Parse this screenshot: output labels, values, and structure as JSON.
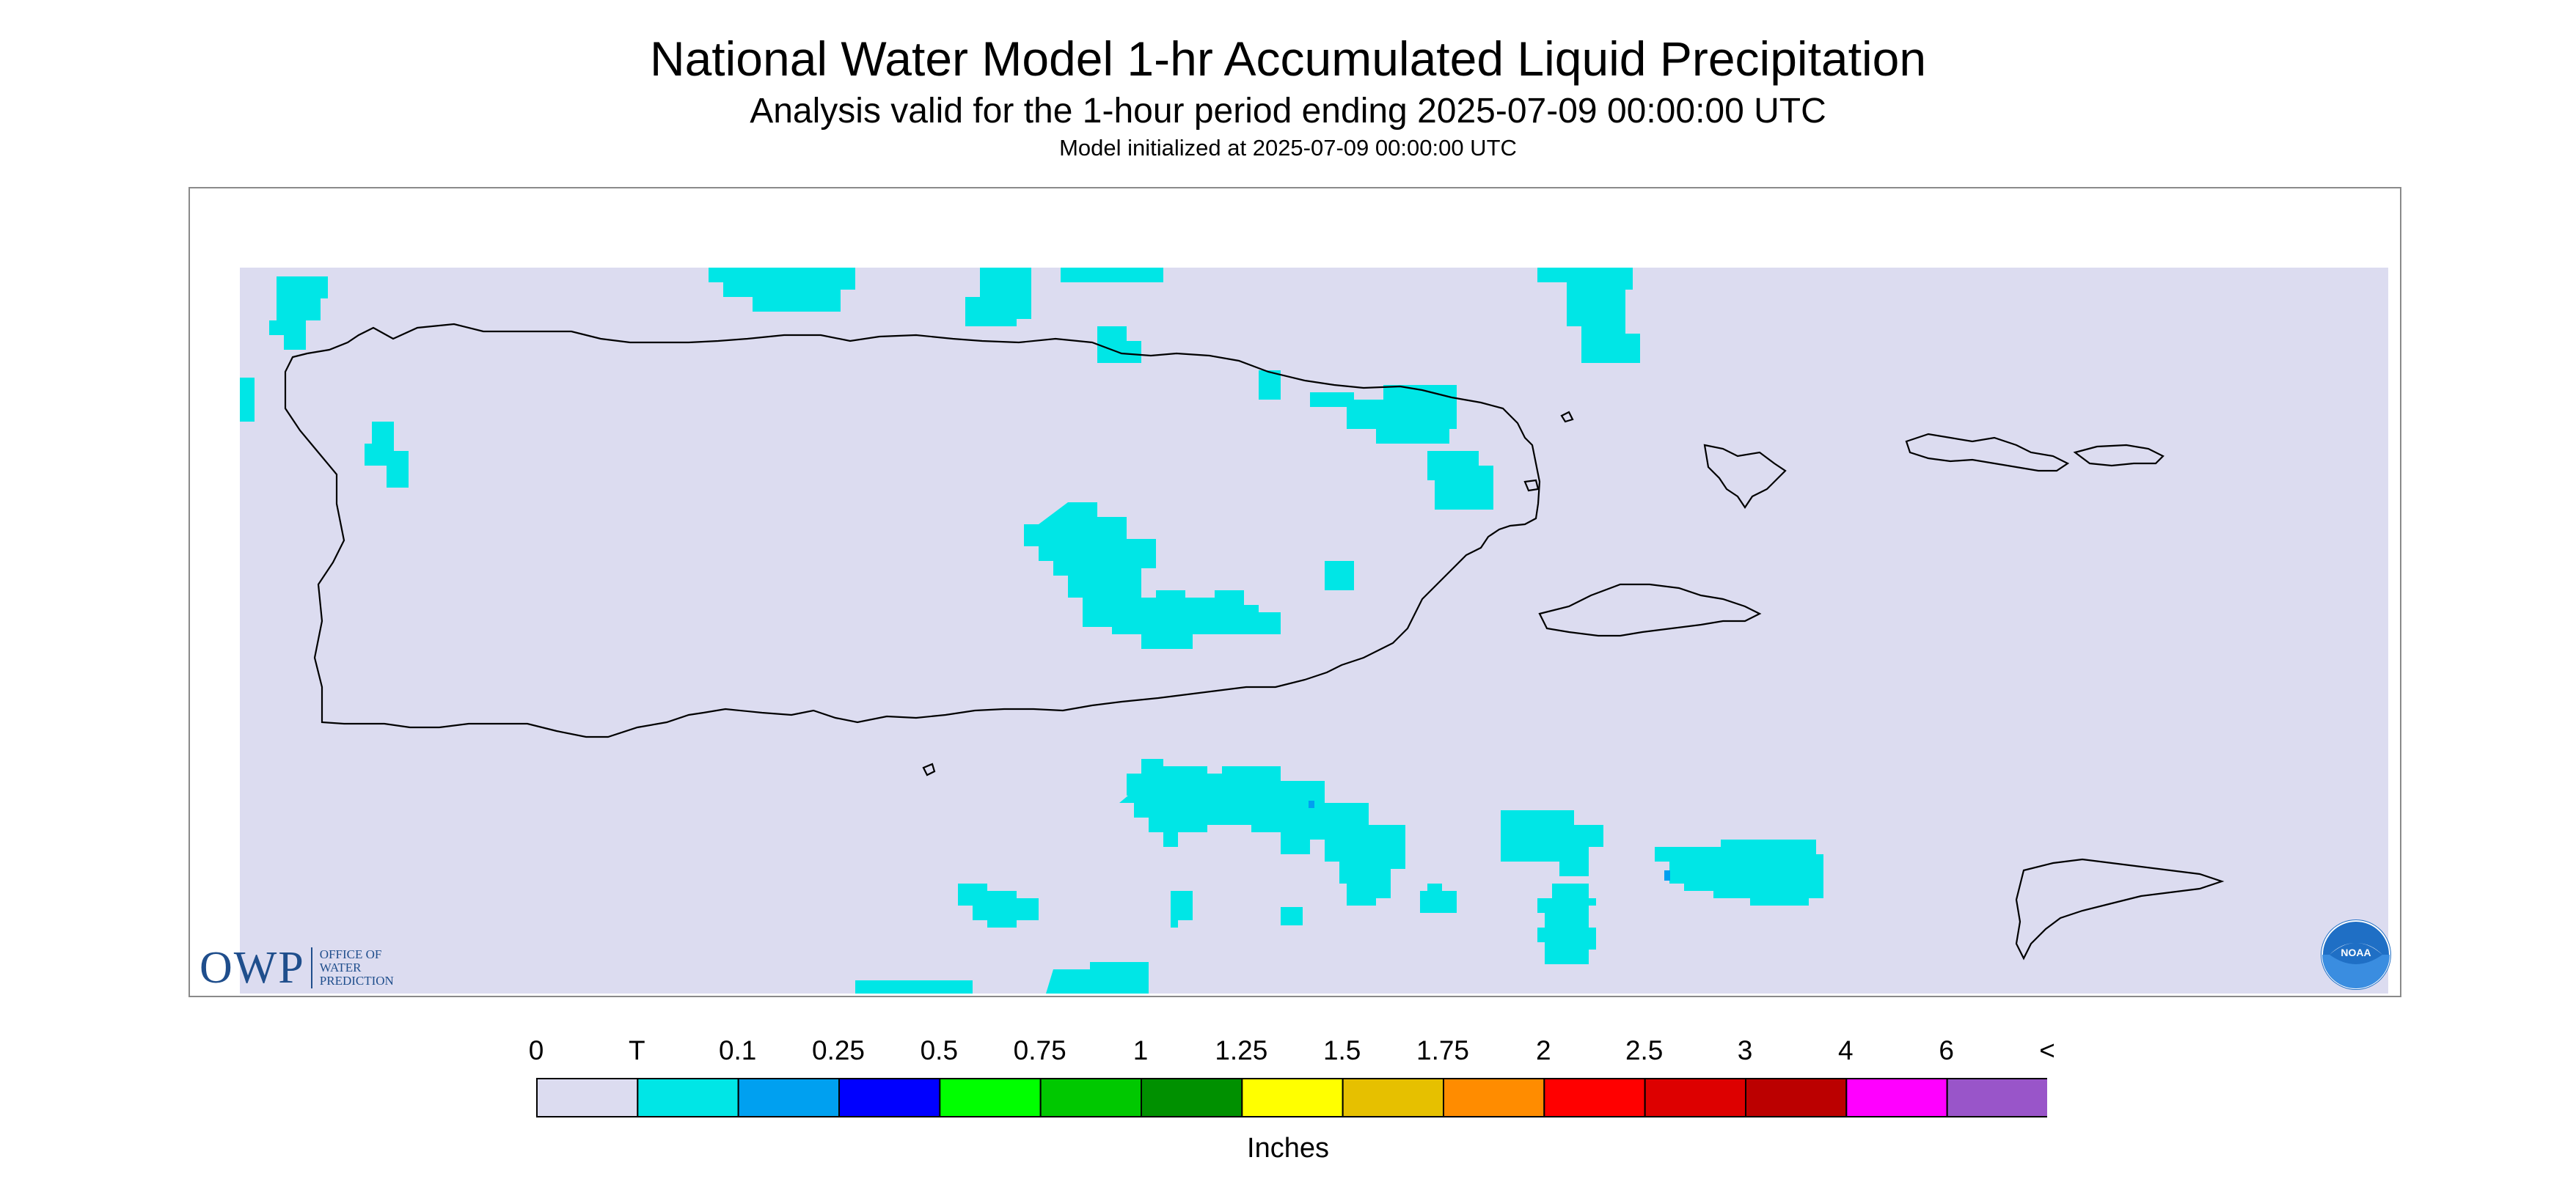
{
  "header": {
    "title": "National Water Model 1-hr Accumulated Liquid Precipitation",
    "subtitle": "Analysis valid for the 1-hour period ending 2025-07-09 00:00:00 UTC",
    "init_line": "Model initialized at 2025-07-09 00:00:00 UTC"
  },
  "logos": {
    "owp": {
      "mark": "OWP",
      "lines": [
        "OFFICE OF",
        "WATER",
        "PREDICTION"
      ]
    },
    "noaa": {
      "mark": "NOAA"
    }
  },
  "legend": {
    "title": "Inches",
    "ticks": [
      "0",
      "T",
      "0.1",
      "0.25",
      "0.5",
      "0.75",
      "1",
      "1.25",
      "1.5",
      "1.75",
      "2",
      "2.5",
      "3",
      "4",
      "6",
      "<"
    ],
    "colors": [
      "#dcdcf0",
      "#00e6e6",
      "#00a0f0",
      "#0000ff",
      "#00ff00",
      "#00c800",
      "#009000",
      "#ffff00",
      "#e6c000",
      "#ff8c00",
      "#ff0000",
      "#dd0000",
      "#bb0000",
      "#ff00ff",
      "#9955c9"
    ]
  },
  "colors": {
    "background": "#dcdcf0",
    "trace": "#00e6e6",
    "light": "#00a0f0",
    "coastline": "#000000"
  },
  "regions": [
    "Puerto Rico",
    "Vieques",
    "Culebra",
    "St. Thomas",
    "St. John",
    "St. Croix"
  ]
}
